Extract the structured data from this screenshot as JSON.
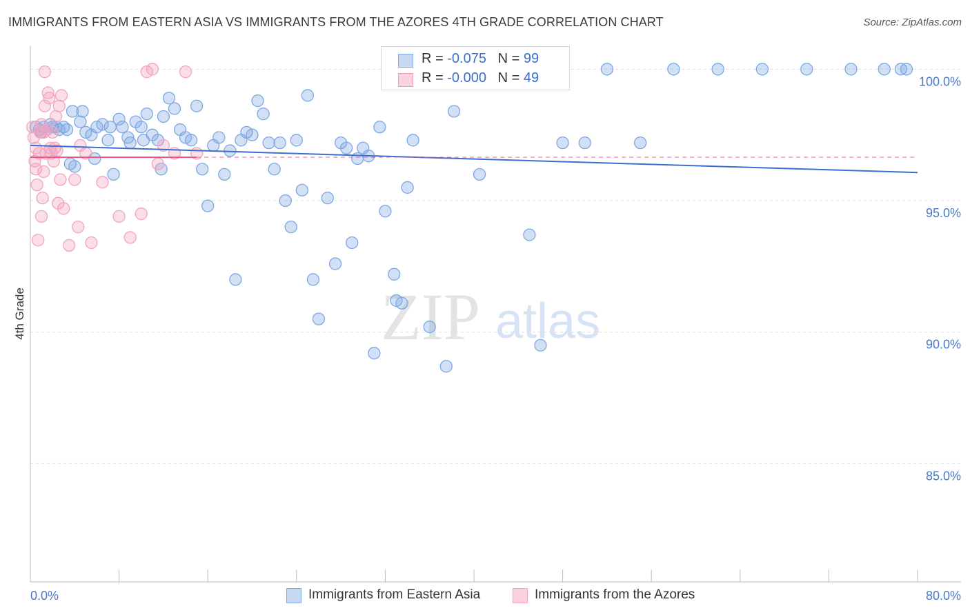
{
  "title": "IMMIGRANTS FROM EASTERN ASIA VS IMMIGRANTS FROM THE AZORES 4TH GRADE CORRELATION CHART",
  "source": "Source: ZipAtlas.com",
  "watermark": {
    "zip": "ZIP",
    "atlas": "atlas"
  },
  "stats": [
    {
      "r_label": "R = ",
      "r_value": "-0.075",
      "n_label": "N = ",
      "n_value": "99"
    },
    {
      "r_label": "R = ",
      "r_value": "-0.000",
      "n_label": "N = ",
      "n_value": "49"
    }
  ],
  "legend": [
    {
      "label": "Immigrants from Eastern Asia"
    },
    {
      "label": "Immigrants from the Azores"
    }
  ],
  "chart_data": {
    "type": "scatter",
    "title": "IMMIGRANTS FROM EASTERN ASIA VS IMMIGRANTS FROM THE AZORES 4TH GRADE CORRELATION CHART",
    "xlabel": "",
    "ylabel": "4th Grade",
    "xlim": [
      0,
      80
    ],
    "ylim": [
      80.5,
      100.9
    ],
    "x_tick_labels": [
      "0.0%",
      "80.0%"
    ],
    "y_ticks": [
      100,
      95,
      90,
      85
    ],
    "y_tick_labels": [
      "100.0%",
      "95.0%",
      "90.0%",
      "85.0%"
    ],
    "grid": "horizontal dashed",
    "legend_position": "bottom",
    "series": [
      {
        "name": "Immigrants from Eastern Asia",
        "color": "#7ea7e3",
        "line_color": "#3a6fd0",
        "trend": {
          "x": [
            0,
            80
          ],
          "y": [
            97.1,
            96.07
          ]
        },
        "points": [
          [
            0.5,
            97.8
          ],
          [
            0.8,
            97.7
          ],
          [
            1.0,
            97.6
          ],
          [
            1.2,
            97.8
          ],
          [
            1.5,
            97.7
          ],
          [
            1.8,
            97.9
          ],
          [
            2.0,
            97.8
          ],
          [
            2.3,
            97.8
          ],
          [
            2.6,
            97.7
          ],
          [
            3.0,
            97.8
          ],
          [
            3.3,
            97.7
          ],
          [
            3.6,
            96.4
          ],
          [
            3.8,
            98.4
          ],
          [
            4.0,
            96.3
          ],
          [
            4.5,
            98.0
          ],
          [
            4.7,
            98.4
          ],
          [
            5.0,
            97.6
          ],
          [
            5.5,
            97.5
          ],
          [
            5.8,
            96.6
          ],
          [
            6.0,
            97.8
          ],
          [
            6.5,
            97.9
          ],
          [
            7.0,
            97.3
          ],
          [
            7.2,
            97.8
          ],
          [
            7.5,
            96.0
          ],
          [
            8.0,
            98.1
          ],
          [
            8.3,
            97.8
          ],
          [
            8.8,
            97.4
          ],
          [
            9.0,
            97.2
          ],
          [
            9.5,
            98.0
          ],
          [
            10.0,
            97.8
          ],
          [
            10.2,
            97.3
          ],
          [
            10.5,
            98.3
          ],
          [
            11.0,
            97.5
          ],
          [
            11.5,
            97.3
          ],
          [
            11.8,
            96.2
          ],
          [
            12.0,
            98.2
          ],
          [
            12.5,
            98.9
          ],
          [
            13.0,
            98.5
          ],
          [
            13.5,
            97.7
          ],
          [
            14.0,
            97.4
          ],
          [
            14.5,
            97.3
          ],
          [
            15.0,
            98.6
          ],
          [
            15.5,
            96.2
          ],
          [
            16.0,
            94.8
          ],
          [
            16.5,
            97.1
          ],
          [
            17.0,
            97.4
          ],
          [
            17.5,
            96.0
          ],
          [
            18.0,
            96.9
          ],
          [
            18.5,
            92.0
          ],
          [
            19.0,
            97.3
          ],
          [
            19.5,
            97.6
          ],
          [
            20.0,
            97.5
          ],
          [
            20.5,
            98.8
          ],
          [
            21.0,
            98.3
          ],
          [
            21.5,
            97.2
          ],
          [
            22.0,
            96.2
          ],
          [
            22.5,
            97.2
          ],
          [
            23.0,
            95.0
          ],
          [
            23.5,
            94.0
          ],
          [
            24.0,
            97.3
          ],
          [
            24.5,
            95.4
          ],
          [
            25.0,
            99.0
          ],
          [
            25.5,
            92.0
          ],
          [
            26.0,
            90.5
          ],
          [
            26.8,
            95.1
          ],
          [
            27.5,
            92.6
          ],
          [
            28.0,
            97.2
          ],
          [
            28.5,
            97.0
          ],
          [
            29.0,
            93.4
          ],
          [
            29.5,
            96.6
          ],
          [
            30.0,
            97.0
          ],
          [
            30.5,
            96.7
          ],
          [
            31.0,
            89.2
          ],
          [
            31.5,
            97.8
          ],
          [
            32.0,
            94.6
          ],
          [
            32.8,
            92.2
          ],
          [
            33.0,
            91.2
          ],
          [
            33.5,
            91.1
          ],
          [
            34.0,
            95.5
          ],
          [
            34.5,
            97.3
          ],
          [
            36.0,
            90.2
          ],
          [
            37.5,
            88.7
          ],
          [
            38.2,
            98.4
          ],
          [
            40.5,
            96.0
          ],
          [
            42.0,
            100.0
          ],
          [
            45.0,
            93.7
          ],
          [
            46.0,
            89.5
          ],
          [
            48.0,
            97.2
          ],
          [
            50.0,
            97.2
          ],
          [
            52.0,
            100.0
          ],
          [
            55.0,
            97.2
          ],
          [
            58.0,
            100.0
          ],
          [
            62.0,
            100.0
          ],
          [
            66.0,
            100.0
          ],
          [
            70.0,
            100.0
          ],
          [
            74.0,
            100.0
          ],
          [
            77.0,
            100.0
          ],
          [
            78.5,
            100.0
          ],
          [
            79.0,
            100.0
          ]
        ]
      },
      {
        "name": "Immigrants from the Azores",
        "color": "#f2a4bf",
        "line_color": "#e5558a",
        "trend": {
          "x": [
            0,
            15
          ],
          "y": [
            96.65,
            96.65
          ]
        },
        "trend_dashed": {
          "x": [
            15,
            80
          ],
          "y": [
            96.65,
            96.65
          ]
        },
        "points": [
          [
            0.2,
            97.8
          ],
          [
            0.3,
            97.4
          ],
          [
            0.4,
            96.5
          ],
          [
            0.5,
            96.2
          ],
          [
            0.5,
            97.0
          ],
          [
            0.6,
            95.6
          ],
          [
            0.7,
            93.5
          ],
          [
            0.8,
            96.8
          ],
          [
            0.9,
            97.6
          ],
          [
            1.0,
            94.4
          ],
          [
            1.0,
            97.9
          ],
          [
            1.1,
            95.1
          ],
          [
            1.2,
            96.1
          ],
          [
            1.2,
            97.6
          ],
          [
            1.3,
            98.6
          ],
          [
            1.4,
            96.8
          ],
          [
            1.5,
            97.7
          ],
          [
            1.6,
            99.1
          ],
          [
            1.7,
            98.9
          ],
          [
            1.8,
            97.0
          ],
          [
            1.9,
            96.8
          ],
          [
            2.0,
            97.6
          ],
          [
            2.1,
            96.5
          ],
          [
            2.2,
            97.0
          ],
          [
            2.3,
            98.2
          ],
          [
            2.4,
            96.9
          ],
          [
            2.5,
            94.9
          ],
          [
            2.6,
            98.6
          ],
          [
            2.7,
            95.8
          ],
          [
            2.8,
            99.0
          ],
          [
            3.0,
            94.7
          ],
          [
            3.5,
            93.3
          ],
          [
            4.0,
            95.8
          ],
          [
            4.3,
            94.0
          ],
          [
            4.5,
            97.1
          ],
          [
            5.0,
            96.8
          ],
          [
            5.5,
            93.4
          ],
          [
            6.5,
            95.7
          ],
          [
            8.0,
            94.4
          ],
          [
            9.0,
            93.6
          ],
          [
            10.0,
            94.5
          ],
          [
            10.5,
            99.9
          ],
          [
            11.0,
            100.0
          ],
          [
            11.5,
            96.4
          ],
          [
            12.0,
            97.1
          ],
          [
            13.0,
            96.8
          ],
          [
            14.0,
            99.9
          ],
          [
            15.0,
            96.8
          ],
          [
            1.3,
            99.9
          ]
        ]
      }
    ]
  }
}
